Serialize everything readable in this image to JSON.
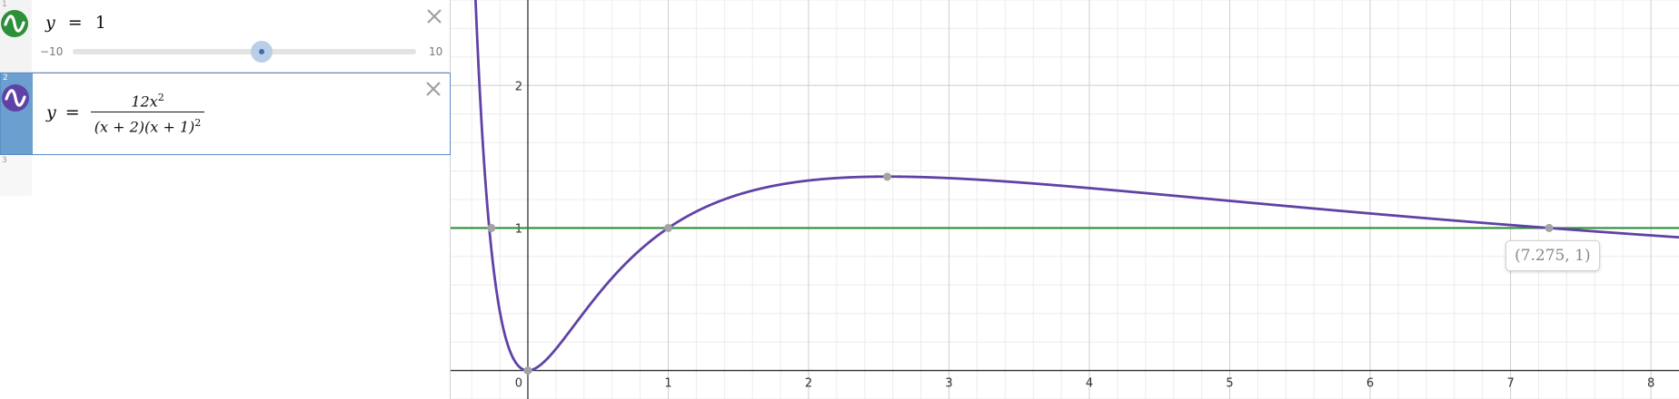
{
  "sidebar": {
    "expressions": [
      {
        "index": "1",
        "icon": "wave-icon",
        "color": "#2d8f3a",
        "lhs": "y",
        "eq": "=",
        "rhs": "1",
        "slider": {
          "min": "−10",
          "max": "10",
          "value": 1
        }
      },
      {
        "index": "2",
        "icon": "wave-icon",
        "color": "#6042a6",
        "lhs": "y",
        "eq": "=",
        "numerator": "12x",
        "numerator_exp": "2",
        "denominator_a": "(x + 2)",
        "denominator_b": "(x + 1)",
        "denominator_exp": "2"
      },
      {
        "index": "3"
      }
    ]
  },
  "graph": {
    "x_ticks": [
      "0",
      "1",
      "2",
      "3",
      "4",
      "5",
      "6",
      "7",
      "8"
    ],
    "y_ticks": [
      "1",
      "2"
    ],
    "xlim": [
      -0.55,
      8.2
    ],
    "ylim": [
      -0.2,
      2.6
    ],
    "grid": true,
    "line_color": "#2d8f3a",
    "curve_color": "#6042a6",
    "points": [
      {
        "x": -0.26,
        "y": 1
      },
      {
        "x": 0,
        "y": 0
      },
      {
        "x": 1,
        "y": 1
      },
      {
        "x": 2.56,
        "y": 1.36
      },
      {
        "x": 7.275,
        "y": 1
      }
    ],
    "selected_label": "(7.275, 1)"
  }
}
